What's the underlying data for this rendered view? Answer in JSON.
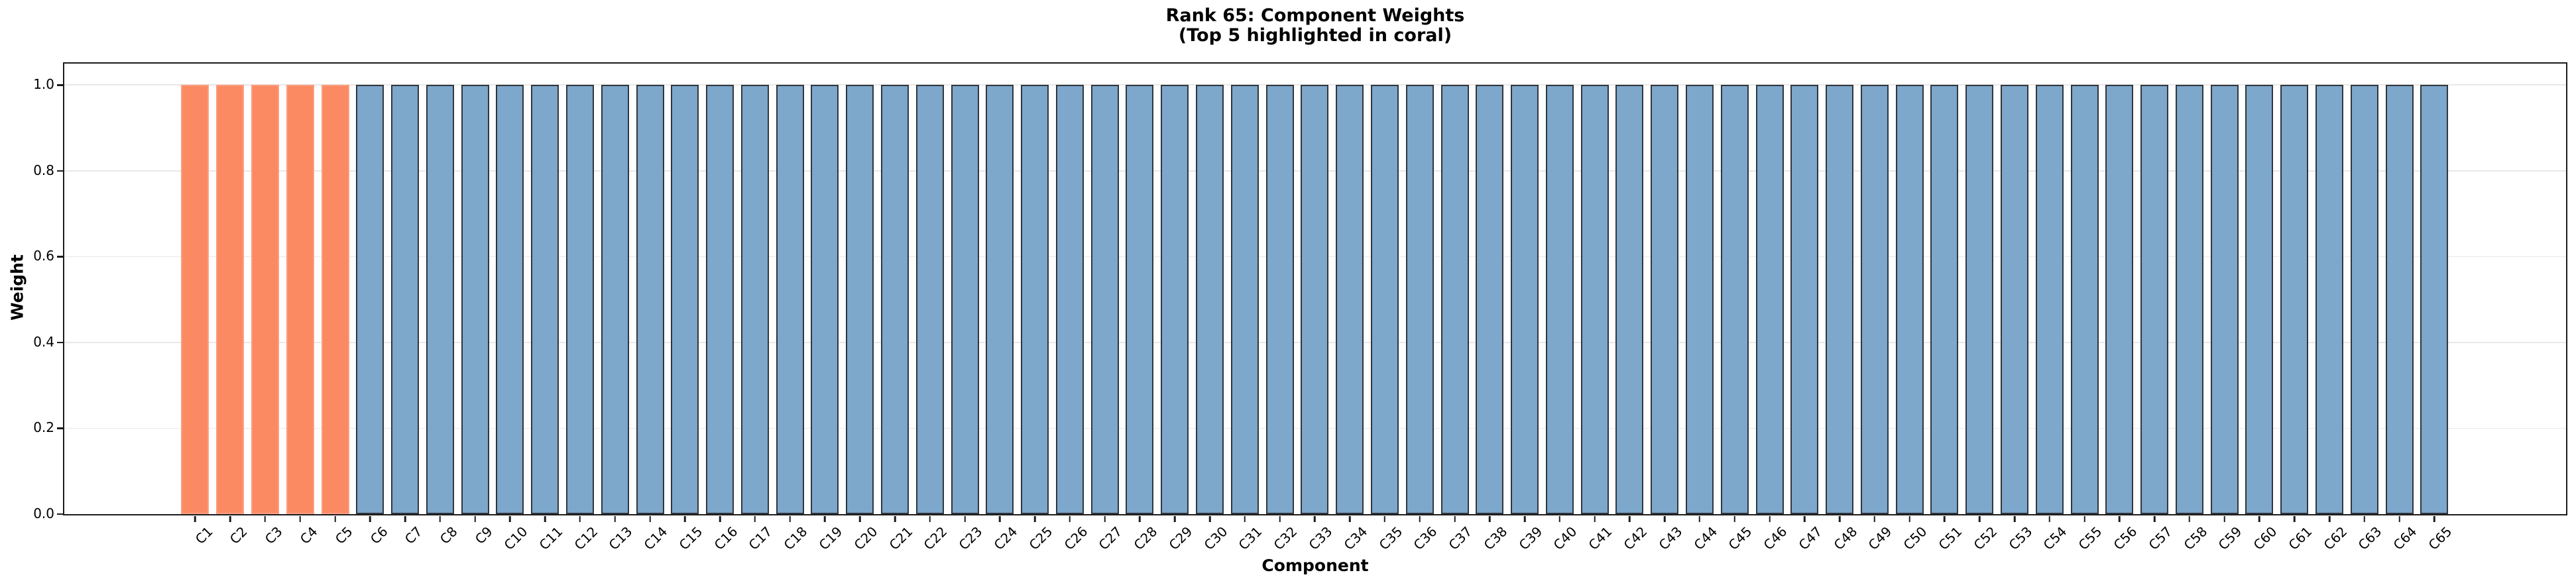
{
  "chart_data": {
    "type": "bar",
    "title": "Rank 65: Component Weights",
    "subtitle": "(Top 5 highlighted in coral)",
    "xlabel": "Component",
    "ylabel": "Weight",
    "categories": [
      "C1",
      "C2",
      "C3",
      "C4",
      "C5",
      "C6",
      "C7",
      "C8",
      "C9",
      "C10",
      "C11",
      "C12",
      "C13",
      "C14",
      "C15",
      "C16",
      "C17",
      "C18",
      "C19",
      "C20",
      "C21",
      "C22",
      "C23",
      "C24",
      "C25",
      "C26",
      "C27",
      "C28",
      "C29",
      "C30",
      "C31",
      "C32",
      "C33",
      "C34",
      "C35",
      "C36",
      "C37",
      "C38",
      "C39",
      "C40",
      "C41",
      "C42",
      "C43",
      "C44",
      "C45",
      "C46",
      "C47",
      "C48",
      "C49",
      "C50",
      "C51",
      "C52",
      "C53",
      "C54",
      "C55",
      "C56",
      "C57",
      "C58",
      "C59",
      "C60",
      "C61",
      "C62",
      "C63",
      "C64",
      "C65"
    ],
    "values": [
      1.0,
      1.0,
      1.0,
      1.0,
      1.0,
      1.0,
      1.0,
      1.0,
      1.0,
      1.0,
      1.0,
      1.0,
      1.0,
      1.0,
      1.0,
      1.0,
      1.0,
      1.0,
      1.0,
      1.0,
      1.0,
      1.0,
      1.0,
      1.0,
      1.0,
      1.0,
      1.0,
      1.0,
      1.0,
      1.0,
      1.0,
      1.0,
      1.0,
      1.0,
      1.0,
      1.0,
      1.0,
      1.0,
      1.0,
      1.0,
      1.0,
      1.0,
      1.0,
      1.0,
      1.0,
      1.0,
      1.0,
      1.0,
      1.0,
      1.0,
      1.0,
      1.0,
      1.0,
      1.0,
      1.0,
      1.0,
      1.0,
      1.0,
      1.0,
      1.0,
      1.0,
      1.0,
      1.0,
      1.0,
      1.0
    ],
    "yticks": [
      0.0,
      0.2,
      0.4,
      0.6,
      0.8,
      1.0
    ],
    "ylim": [
      0,
      1.05
    ],
    "xtick_rotation": 45,
    "grid": "horizontal",
    "legend": "none",
    "highlight": {
      "count": 5,
      "note": "Top 5 highlighted in coral"
    },
    "colors": {
      "highlight_fill": "#FB8A63",
      "highlight_edge": "#FE9D7F",
      "bar_fill": "#7DA7CB",
      "bar_edge": "#31363D",
      "grid": "#E8E8E8",
      "axis": "#1C1C1C",
      "text": "#000000",
      "background": "#FFFFFF"
    }
  }
}
